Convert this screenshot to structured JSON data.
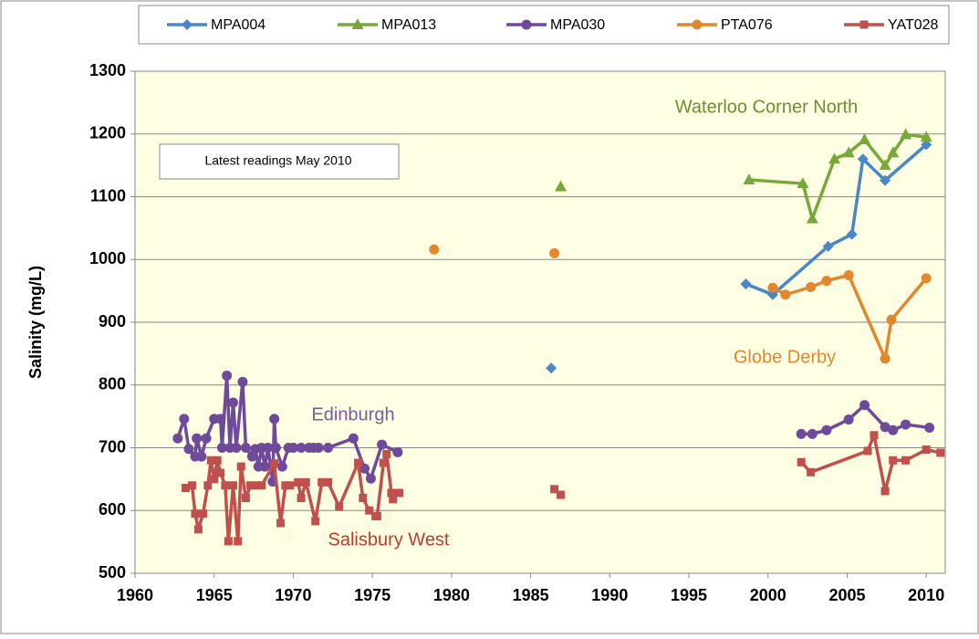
{
  "chart_data": {
    "type": "line",
    "y_label": "Salinity (mg/L)",
    "xlim": [
      1960,
      2011.2
    ],
    "xticks": [
      1960,
      1965,
      1970,
      1975,
      1980,
      1985,
      1990,
      1995,
      2000,
      2005,
      2010
    ],
    "ylim": [
      500,
      1300
    ],
    "yticks": [
      500,
      600,
      700,
      800,
      900,
      1000,
      1100,
      1200,
      1300
    ],
    "grid": true,
    "legend": "top",
    "annotations": [
      {
        "text": "Waterloo Corner North",
        "color": "#6e8f34"
      },
      {
        "text": "Globe Derby",
        "color": "#e3872f"
      },
      {
        "text": "Edinburgh",
        "color": "#7a5aa6"
      },
      {
        "text": "Salisbury West",
        "color": "#c0392b"
      },
      {
        "text": "Latest readings  May  2010",
        "color": "#000000"
      }
    ],
    "series": [
      {
        "name": "MPA004",
        "color": "#4a86c8",
        "marker": "diamond",
        "x": [
          1986.3,
          null,
          1998.6,
          2000.3,
          2003.8,
          2005.3,
          2006.0,
          2007.4,
          2010.0
        ],
        "values": [
          827,
          null,
          961,
          944,
          1021,
          1040,
          1160,
          1126,
          1183
        ]
      },
      {
        "name": "MPA013",
        "color": "#79a83a",
        "marker": "triangle",
        "x": [
          1986.9,
          null,
          1998.8,
          2002.2,
          2002.8,
          2004.2,
          2005.1,
          2006.1,
          2007.4,
          2007.9,
          2008.7,
          2010.0
        ],
        "values": [
          1116,
          null,
          1127,
          1121,
          1065,
          1160,
          1170,
          1191,
          1150,
          1170,
          1199,
          1195
        ]
      },
      {
        "name": "MPA030",
        "color": "#6f4a9a",
        "marker": "circle",
        "x": [
          1962.7,
          1963.1,
          1963.4,
          1963.8,
          1963.9,
          1964.2,
          1964.5,
          1965.0,
          1965.4,
          1965.5,
          1965.8,
          1966.0,
          1966.2,
          1966.4,
          1966.8,
          1967.0,
          1967.4,
          1967.6,
          1967.8,
          1968.0,
          1968.2,
          1968.4,
          1968.7,
          1968.8,
          1968.9,
          1969.3,
          1969.7,
          1970.0,
          1970.5,
          1971.0,
          1971.3,
          1971.6,
          1972.2,
          1973.8,
          1974.5,
          1974.9,
          1975.6,
          1976.6,
          null,
          2002.1,
          2002.8,
          2003.7,
          2005.1,
          2006.1,
          2007.4,
          2007.9,
          2008.7,
          2010.2
        ],
        "values": [
          715,
          746,
          698,
          686,
          715,
          686,
          715,
          746,
          746,
          700,
          815,
          700,
          772,
          700,
          805,
          700,
          686,
          698,
          670,
          700,
          670,
          700,
          646,
          746,
          700,
          670,
          700,
          700,
          700,
          700,
          700,
          700,
          700,
          715,
          667,
          651,
          705,
          693,
          null,
          722,
          722,
          728,
          745,
          768,
          733,
          728,
          737,
          732
        ]
      },
      {
        "name": "PTA076",
        "color": "#e3872f",
        "marker": "circle",
        "x": [
          1978.9,
          null,
          1986.5,
          null,
          2000.3,
          2001.1,
          2002.7,
          2003.7,
          2005.1,
          2007.4,
          2007.8,
          2010.0
        ],
        "values": [
          1016,
          null,
          1010,
          null,
          955,
          944,
          956,
          966,
          975,
          842,
          904,
          970
        ]
      },
      {
        "name": "YAT028",
        "color": "#c0504d",
        "marker": "square",
        "x": [
          1963.2,
          1963.6,
          1963.8,
          1964.0,
          1964.3,
          1964.6,
          1964.8,
          1965.0,
          1965.2,
          1965.4,
          1965.7,
          1965.9,
          1966.2,
          1966.5,
          1966.7,
          1967.0,
          1967.3,
          1967.7,
          1968.0,
          1968.8,
          1969.2,
          1969.5,
          1969.8,
          1970.3,
          1970.5,
          1970.8,
          1971.4,
          1971.8,
          1972.2,
          1972.9,
          1974.1,
          1974.4,
          1974.8,
          1975.2,
          1975.3,
          1975.7,
          1975.9,
          1976.2,
          1976.3,
          1976.7,
          null,
          1986.5,
          null,
          1986.9,
          null,
          2002.1,
          2002.7,
          2006.3,
          2006.7,
          2007.4,
          2007.9,
          2008.7,
          2010.0,
          2010.9
        ],
        "values": [
          636,
          640,
          595,
          570,
          595,
          640,
          680,
          650,
          680,
          660,
          640,
          551,
          640,
          551,
          670,
          620,
          640,
          640,
          640,
          675,
          580,
          640,
          640,
          645,
          620,
          645,
          583,
          645,
          645,
          606,
          676,
          620,
          600,
          591,
          591,
          676,
          690,
          628,
          618,
          628,
          null,
          634,
          null,
          625,
          null,
          677,
          661,
          695,
          720,
          631,
          680,
          680,
          697,
          692
        ]
      }
    ]
  }
}
